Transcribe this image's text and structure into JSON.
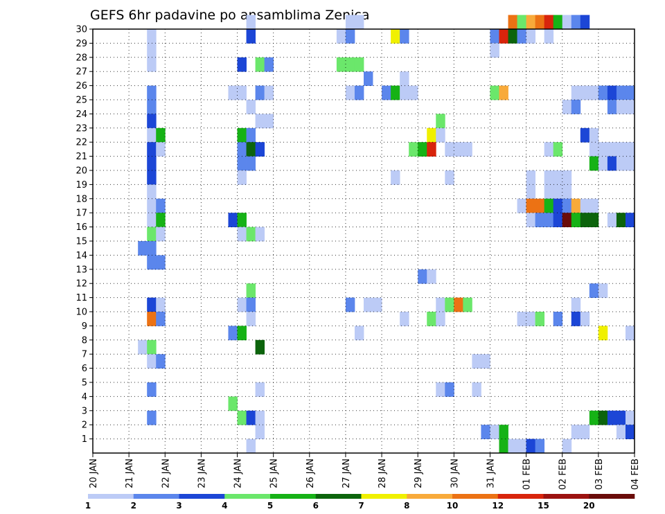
{
  "chart_data": {
    "type": "heatmap",
    "title": "GEFS 6hr padavine po ansamblima Zenica",
    "xlabel": "",
    "ylabel": "",
    "x_ticks": [
      "20 JAN",
      "21 JAN",
      "22 JAN",
      "23 JAN",
      "24 JAN",
      "25 JAN",
      "26 JAN",
      "27 JAN",
      "28 JAN",
      "29 JAN",
      "30 JAN",
      "31 JAN",
      "01 FEB",
      "02 FEB",
      "03 FEB",
      "04 FEB"
    ],
    "y_ticks": [
      "1",
      "2",
      "3",
      "4",
      "5",
      "6",
      "7",
      "8",
      "9",
      "10",
      "11",
      "12",
      "13",
      "14",
      "15",
      "16",
      "17",
      "18",
      "19",
      "20",
      "21",
      "22",
      "23",
      "24",
      "25",
      "26",
      "27",
      "28",
      "29",
      "30"
    ],
    "xlim": [
      0,
      60
    ],
    "ylim": [
      0,
      30
    ],
    "x_unit": "6-hour steps from 20 JAN 00Z",
    "grid": true,
    "legend_placement": "bottom",
    "levels": [
      "1",
      "2",
      "3",
      "4",
      "5",
      "6",
      "7",
      "8",
      "10",
      "12",
      "15",
      "20"
    ],
    "colors": [
      "#bccbf6",
      "#5b86ec",
      "#1c46d6",
      "#6be76b",
      "#16b216",
      "#0c640c",
      "#f0f000",
      "#f8aa3a",
      "#ec7214",
      "#d8240c",
      "#9c1210",
      "#6a0c0a"
    ],
    "cells": [
      [
        17,
        30,
        0
      ],
      [
        28,
        30,
        0
      ],
      [
        29,
        30,
        0
      ],
      [
        46,
        30,
        8
      ],
      [
        47,
        30,
        3
      ],
      [
        48,
        30,
        7
      ],
      [
        49,
        30,
        8
      ],
      [
        50,
        30,
        9
      ],
      [
        51,
        30,
        4
      ],
      [
        52,
        30,
        0
      ],
      [
        53,
        30,
        1
      ],
      [
        54,
        30,
        2
      ],
      [
        6,
        29,
        0
      ],
      [
        17,
        29,
        2
      ],
      [
        27,
        29,
        0
      ],
      [
        28,
        29,
        1
      ],
      [
        33,
        29,
        6
      ],
      [
        34,
        29,
        1
      ],
      [
        44,
        29,
        1
      ],
      [
        45,
        29,
        9
      ],
      [
        46,
        29,
        5
      ],
      [
        47,
        29,
        1
      ],
      [
        48,
        29,
        0
      ],
      [
        50,
        29,
        0
      ],
      [
        6,
        28,
        0
      ],
      [
        44,
        28,
        0
      ],
      [
        6,
        27,
        0
      ],
      [
        16,
        27,
        2
      ],
      [
        18,
        27,
        3
      ],
      [
        19,
        27,
        1
      ],
      [
        27,
        27,
        3
      ],
      [
        28,
        27,
        3
      ],
      [
        29,
        27,
        3
      ],
      [
        30,
        26,
        1
      ],
      [
        34,
        26,
        0
      ],
      [
        6,
        25,
        1
      ],
      [
        15,
        25,
        0
      ],
      [
        16,
        25,
        0
      ],
      [
        18,
        25,
        1
      ],
      [
        19,
        25,
        0
      ],
      [
        28,
        25,
        0
      ],
      [
        29,
        25,
        1
      ],
      [
        32,
        25,
        1
      ],
      [
        33,
        25,
        4
      ],
      [
        34,
        25,
        0
      ],
      [
        35,
        25,
        0
      ],
      [
        44,
        25,
        3
      ],
      [
        45,
        25,
        7
      ],
      [
        53,
        25,
        0
      ],
      [
        54,
        25,
        0
      ],
      [
        55,
        25,
        0
      ],
      [
        56,
        25,
        1
      ],
      [
        57,
        25,
        2
      ],
      [
        58,
        25,
        1
      ],
      [
        59,
        25,
        1
      ],
      [
        6,
        24,
        1
      ],
      [
        17,
        24,
        0
      ],
      [
        52,
        24,
        0
      ],
      [
        53,
        24,
        1
      ],
      [
        57,
        24,
        1
      ],
      [
        58,
        24,
        0
      ],
      [
        59,
        24,
        0
      ],
      [
        6,
        23,
        2
      ],
      [
        18,
        23,
        0
      ],
      [
        19,
        23,
        0
      ],
      [
        38,
        23,
        3
      ],
      [
        6,
        22,
        0
      ],
      [
        7,
        22,
        4
      ],
      [
        16,
        22,
        4
      ],
      [
        17,
        22,
        1
      ],
      [
        37,
        22,
        6
      ],
      [
        38,
        22,
        0
      ],
      [
        54,
        22,
        2
      ],
      [
        55,
        22,
        0
      ],
      [
        6,
        21,
        2
      ],
      [
        7,
        21,
        0
      ],
      [
        16,
        21,
        1
      ],
      [
        17,
        21,
        5
      ],
      [
        18,
        21,
        2
      ],
      [
        35,
        21,
        3
      ],
      [
        36,
        21,
        4
      ],
      [
        37,
        21,
        9
      ],
      [
        39,
        21,
        0
      ],
      [
        40,
        21,
        0
      ],
      [
        41,
        21,
        0
      ],
      [
        50,
        21,
        0
      ],
      [
        51,
        21,
        3
      ],
      [
        55,
        21,
        0
      ],
      [
        56,
        21,
        0
      ],
      [
        57,
        21,
        0
      ],
      [
        58,
        21,
        0
      ],
      [
        59,
        21,
        0
      ],
      [
        6,
        20,
        2
      ],
      [
        16,
        20,
        1
      ],
      [
        17,
        20,
        1
      ],
      [
        55,
        20,
        4
      ],
      [
        56,
        20,
        0
      ],
      [
        57,
        20,
        2
      ],
      [
        58,
        20,
        0
      ],
      [
        59,
        20,
        0
      ],
      [
        6,
        19,
        2
      ],
      [
        16,
        19,
        0
      ],
      [
        33,
        19,
        0
      ],
      [
        39,
        19,
        0
      ],
      [
        48,
        19,
        0
      ],
      [
        50,
        19,
        0
      ],
      [
        51,
        19,
        0
      ],
      [
        52,
        19,
        0
      ],
      [
        6,
        18,
        0
      ],
      [
        48,
        18,
        0
      ],
      [
        50,
        18,
        0
      ],
      [
        51,
        18,
        0
      ],
      [
        52,
        18,
        0
      ],
      [
        6,
        17,
        0
      ],
      [
        7,
        17,
        1
      ],
      [
        47,
        17,
        0
      ],
      [
        48,
        17,
        8
      ],
      [
        49,
        17,
        8
      ],
      [
        50,
        17,
        4
      ],
      [
        51,
        17,
        2
      ],
      [
        52,
        17,
        1
      ],
      [
        53,
        17,
        7
      ],
      [
        54,
        17,
        0
      ],
      [
        55,
        17,
        0
      ],
      [
        6,
        16,
        0
      ],
      [
        7,
        16,
        4
      ],
      [
        15,
        16,
        2
      ],
      [
        16,
        16,
        4
      ],
      [
        48,
        16,
        0
      ],
      [
        49,
        16,
        1
      ],
      [
        50,
        16,
        1
      ],
      [
        51,
        16,
        2
      ],
      [
        52,
        16,
        11
      ],
      [
        53,
        16,
        4
      ],
      [
        54,
        16,
        5
      ],
      [
        55,
        16,
        5
      ],
      [
        57,
        16,
        0
      ],
      [
        58,
        16,
        5
      ],
      [
        59,
        16,
        2
      ],
      [
        6,
        15,
        3
      ],
      [
        7,
        15,
        0
      ],
      [
        16,
        15,
        0
      ],
      [
        17,
        15,
        3
      ],
      [
        18,
        15,
        0
      ],
      [
        5,
        14,
        1
      ],
      [
        6,
        14,
        1
      ],
      [
        6,
        13,
        1
      ],
      [
        7,
        13,
        1
      ],
      [
        36,
        12,
        1
      ],
      [
        37,
        12,
        0
      ],
      [
        17,
        11,
        3
      ],
      [
        55,
        11,
        1
      ],
      [
        56,
        11,
        0
      ],
      [
        6,
        10,
        2
      ],
      [
        7,
        10,
        0
      ],
      [
        16,
        10,
        0
      ],
      [
        17,
        10,
        1
      ],
      [
        28,
        10,
        1
      ],
      [
        30,
        10,
        0
      ],
      [
        31,
        10,
        0
      ],
      [
        38,
        10,
        0
      ],
      [
        39,
        10,
        3
      ],
      [
        40,
        10,
        8
      ],
      [
        41,
        10,
        3
      ],
      [
        53,
        10,
        0
      ],
      [
        6,
        9,
        8
      ],
      [
        7,
        9,
        1
      ],
      [
        17,
        9,
        0
      ],
      [
        34,
        9,
        0
      ],
      [
        37,
        9,
        3
      ],
      [
        38,
        9,
        0
      ],
      [
        47,
        9,
        0
      ],
      [
        48,
        9,
        0
      ],
      [
        49,
        9,
        3
      ],
      [
        51,
        9,
        1
      ],
      [
        53,
        9,
        2
      ],
      [
        54,
        9,
        0
      ],
      [
        15,
        8,
        1
      ],
      [
        16,
        8,
        4
      ],
      [
        29,
        8,
        0
      ],
      [
        56,
        8,
        6
      ],
      [
        59,
        8,
        0
      ],
      [
        5,
        7,
        0
      ],
      [
        6,
        7,
        3
      ],
      [
        18,
        7,
        5
      ],
      [
        6,
        6,
        0
      ],
      [
        7,
        6,
        1
      ],
      [
        42,
        6,
        0
      ],
      [
        43,
        6,
        0
      ],
      [
        6,
        4,
        1
      ],
      [
        18,
        4,
        0
      ],
      [
        38,
        4,
        0
      ],
      [
        39,
        4,
        1
      ],
      [
        42,
        4,
        0
      ],
      [
        15,
        3,
        3
      ],
      [
        6,
        2,
        1
      ],
      [
        16,
        2,
        3
      ],
      [
        17,
        2,
        2
      ],
      [
        18,
        2,
        0
      ],
      [
        55,
        2,
        4
      ],
      [
        56,
        2,
        5
      ],
      [
        57,
        2,
        2
      ],
      [
        58,
        2,
        2
      ],
      [
        59,
        2,
        0
      ],
      [
        18,
        1,
        0
      ],
      [
        43,
        1,
        1
      ],
      [
        44,
        1,
        0
      ],
      [
        45,
        1,
        4
      ],
      [
        53,
        1,
        0
      ],
      [
        54,
        1,
        0
      ],
      [
        58,
        1,
        0
      ],
      [
        59,
        1,
        2
      ],
      [
        17,
        0,
        0
      ],
      [
        45,
        0,
        4
      ],
      [
        46,
        0,
        0
      ],
      [
        47,
        0,
        0
      ],
      [
        48,
        0,
        2
      ],
      [
        49,
        0,
        1
      ],
      [
        52,
        0,
        0
      ]
    ]
  }
}
